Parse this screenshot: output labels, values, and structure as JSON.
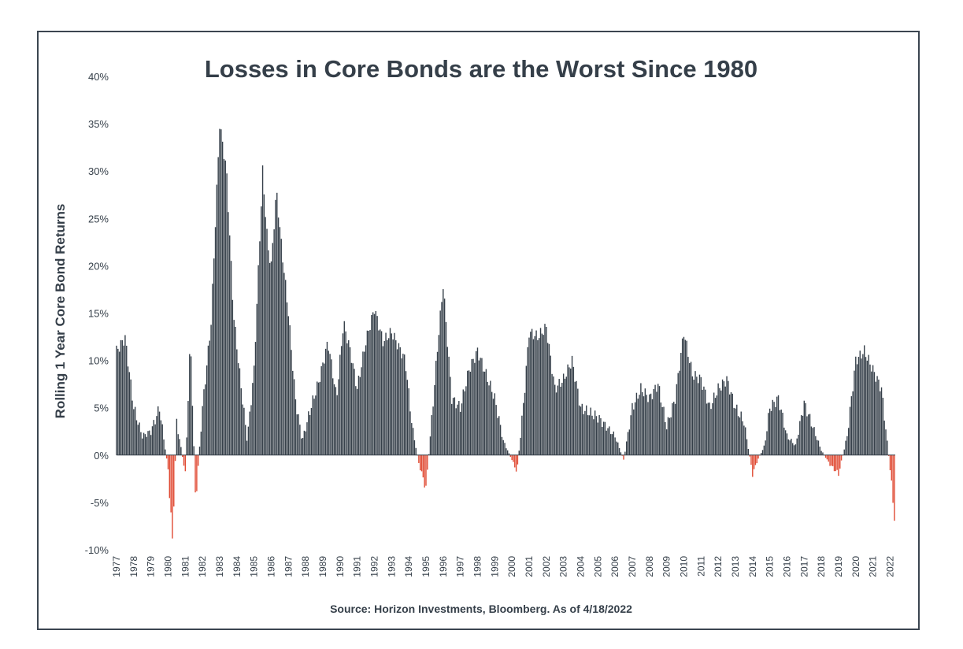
{
  "chart_data": {
    "type": "bar",
    "title": "Losses in Core Bonds are the Worst Since 1980",
    "ylabel": "Rolling 1 Year Core Bond Returns",
    "xlabel": "",
    "source": "Source: Horizon Investments, Bloomberg. As of 4/18/2022",
    "ylim": [
      -10,
      40
    ],
    "y_ticks": [
      "40%",
      "35%",
      "30%",
      "25%",
      "20%",
      "15%",
      "10%",
      "5%",
      "0%",
      "-5%",
      "-10%"
    ],
    "x_range": [
      1977,
      2022.3
    ],
    "x_tick_labels": [
      "1977",
      "1978",
      "1979",
      "1980",
      "1981",
      "1982",
      "1983",
      "1984",
      "1985",
      "1986",
      "1987",
      "1988",
      "1989",
      "1990",
      "1991",
      "1992",
      "1993",
      "1994",
      "1995",
      "1996",
      "1997",
      "1998",
      "1999",
      "2000",
      "2001",
      "2002",
      "2003",
      "2004",
      "2005",
      "2006",
      "2007",
      "2008",
      "2009",
      "2010",
      "2011",
      "2012",
      "2013",
      "2014",
      "2015",
      "2016",
      "2017",
      "2018",
      "2019",
      "2020",
      "2021",
      "2022"
    ],
    "grid": false,
    "colors": {
      "positive": "#353f49",
      "negative": "#e04a33",
      "frame": "#3b4550"
    },
    "x": [
      1977.0,
      1977.5,
      1978.0,
      1978.5,
      1979.0,
      1979.5,
      1980.0,
      1980.25,
      1980.5,
      1981.0,
      1981.3,
      1981.6,
      1982.0,
      1982.5,
      1983.0,
      1983.4,
      1983.8,
      1984.2,
      1984.6,
      1985.0,
      1985.5,
      1985.8,
      1986.0,
      1986.3,
      1986.6,
      1987.0,
      1987.4,
      1987.8,
      1988.3,
      1988.8,
      1989.3,
      1989.8,
      1990.2,
      1990.6,
      1991.0,
      1991.5,
      1992.0,
      1992.5,
      1993.0,
      1993.4,
      1993.8,
      1994.2,
      1994.6,
      1995.0,
      1995.3,
      1995.7,
      1996.0,
      1996.5,
      1997.0,
      1997.5,
      1998.0,
      1998.5,
      1999.0,
      1999.5,
      2000.0,
      2000.3,
      2000.7,
      2001.0,
      2001.5,
      2002.0,
      2002.5,
      2003.0,
      2003.5,
      2004.0,
      2004.5,
      2005.0,
      2005.5,
      2006.0,
      2006.5,
      2007.0,
      2007.5,
      2008.0,
      2008.5,
      2009.0,
      2009.5,
      2010.0,
      2010.5,
      2011.0,
      2011.5,
      2012.0,
      2012.5,
      2013.0,
      2013.5,
      2014.0,
      2014.3,
      2014.7,
      2015.0,
      2015.5,
      2016.0,
      2016.5,
      2017.0,
      2017.5,
      2018.0,
      2018.5,
      2019.0,
      2019.5,
      2020.0,
      2020.5,
      2021.0,
      2021.5,
      2022.0,
      2022.3
    ],
    "values": [
      11.0,
      12.4,
      5.0,
      2.0,
      2.5,
      5.0,
      -1.5,
      -9.0,
      3.5,
      -2.0,
      12.5,
      -5.0,
      5.0,
      14.0,
      35.0,
      30.0,
      15.0,
      8.0,
      1.5,
      9.0,
      30.0,
      22.0,
      20.0,
      28.0,
      22.0,
      15.0,
      6.0,
      1.5,
      5.0,
      8.0,
      12.0,
      6.0,
      14.0,
      11.0,
      7.0,
      12.0,
      15.5,
      12.0,
      13.0,
      11.5,
      10.0,
      3.0,
      -1.0,
      -3.5,
      3.0,
      12.0,
      18.0,
      6.0,
      5.0,
      9.0,
      11.0,
      8.5,
      6.0,
      1.5,
      -0.5,
      -1.8,
      6.0,
      13.0,
      12.5,
      13.5,
      7.0,
      8.0,
      10.0,
      5.0,
      4.5,
      4.0,
      3.0,
      2.0,
      -0.5,
      5.0,
      7.0,
      6.0,
      7.5,
      3.0,
      6.0,
      13.0,
      8.5,
      8.0,
      5.0,
      7.0,
      8.0,
      5.0,
      3.5,
      -2.0,
      -0.5,
      1.0,
      5.0,
      6.0,
      2.0,
      1.0,
      5.5,
      3.0,
      0.5,
      -1.0,
      -2.0,
      2.0,
      10.0,
      11.0,
      9.0,
      7.0,
      -1.5,
      -7.5
    ]
  }
}
